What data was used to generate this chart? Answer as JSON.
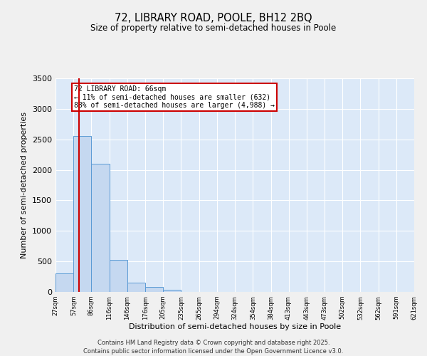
{
  "title_line1": "72, LIBRARY ROAD, POOLE, BH12 2BQ",
  "title_line2": "Size of property relative to semi-detached houses in Poole",
  "xlabel": "Distribution of semi-detached houses by size in Poole",
  "ylabel": "Number of semi-detached properties",
  "property_size": 66,
  "property_label": "72 LIBRARY ROAD: 66sqm",
  "pct_smaller": 11,
  "pct_larger": 88,
  "n_smaller": 632,
  "n_larger": 4988,
  "bin_edges": [
    27,
    57,
    86,
    116,
    146,
    176,
    205,
    235,
    265,
    294,
    324,
    354,
    384,
    413,
    443,
    473,
    502,
    532,
    562,
    591,
    621
  ],
  "bar_heights": [
    300,
    2550,
    2100,
    520,
    150,
    80,
    40,
    5,
    0,
    0,
    0,
    0,
    0,
    0,
    0,
    0,
    0,
    0,
    0,
    0
  ],
  "bar_color": "#c5d8f0",
  "bar_edge_color": "#5b9bd5",
  "red_line_color": "#cc0000",
  "annotation_box_color": "#cc0000",
  "background_color": "#dce9f8",
  "grid_color": "#ffffff",
  "fig_facecolor": "#f0f0f0",
  "ylim": [
    0,
    3500
  ],
  "yticks": [
    0,
    500,
    1000,
    1500,
    2000,
    2500,
    3000,
    3500
  ],
  "footer_line1": "Contains HM Land Registry data © Crown copyright and database right 2025.",
  "footer_line2": "Contains public sector information licensed under the Open Government Licence v3.0."
}
